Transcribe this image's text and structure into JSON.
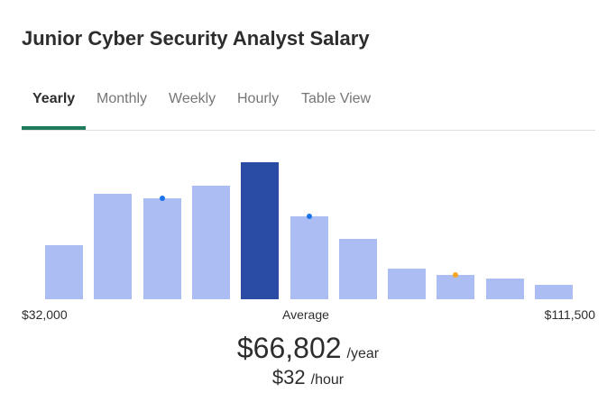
{
  "header": {
    "title": "Junior Cyber Security Analyst Salary"
  },
  "tabs": [
    {
      "label": "Yearly",
      "active": true
    },
    {
      "label": "Monthly",
      "active": false
    },
    {
      "label": "Weekly",
      "active": false
    },
    {
      "label": "Hourly",
      "active": false
    },
    {
      "label": "Table View",
      "active": false
    }
  ],
  "chart_data": {
    "type": "bar",
    "values": [
      60,
      117,
      112,
      126,
      152,
      92,
      67,
      34,
      27,
      23,
      16
    ],
    "highlight_index": 4,
    "markers": [
      {
        "bar_index": 2,
        "color": "#1a73e8"
      },
      {
        "bar_index": 5,
        "color": "#1a73e8"
      },
      {
        "bar_index": 8,
        "color": "#f5a623"
      }
    ],
    "colors": {
      "bar": "#abbdf3",
      "highlight": "#2a4ca4"
    },
    "x_min_label": "$32,000",
    "x_mid_label": "Average",
    "x_max_label": "$111,500"
  },
  "average": {
    "yearly_value": "$66,802",
    "yearly_unit": "/year",
    "hourly_value": "$32",
    "hourly_unit": "/hour"
  }
}
